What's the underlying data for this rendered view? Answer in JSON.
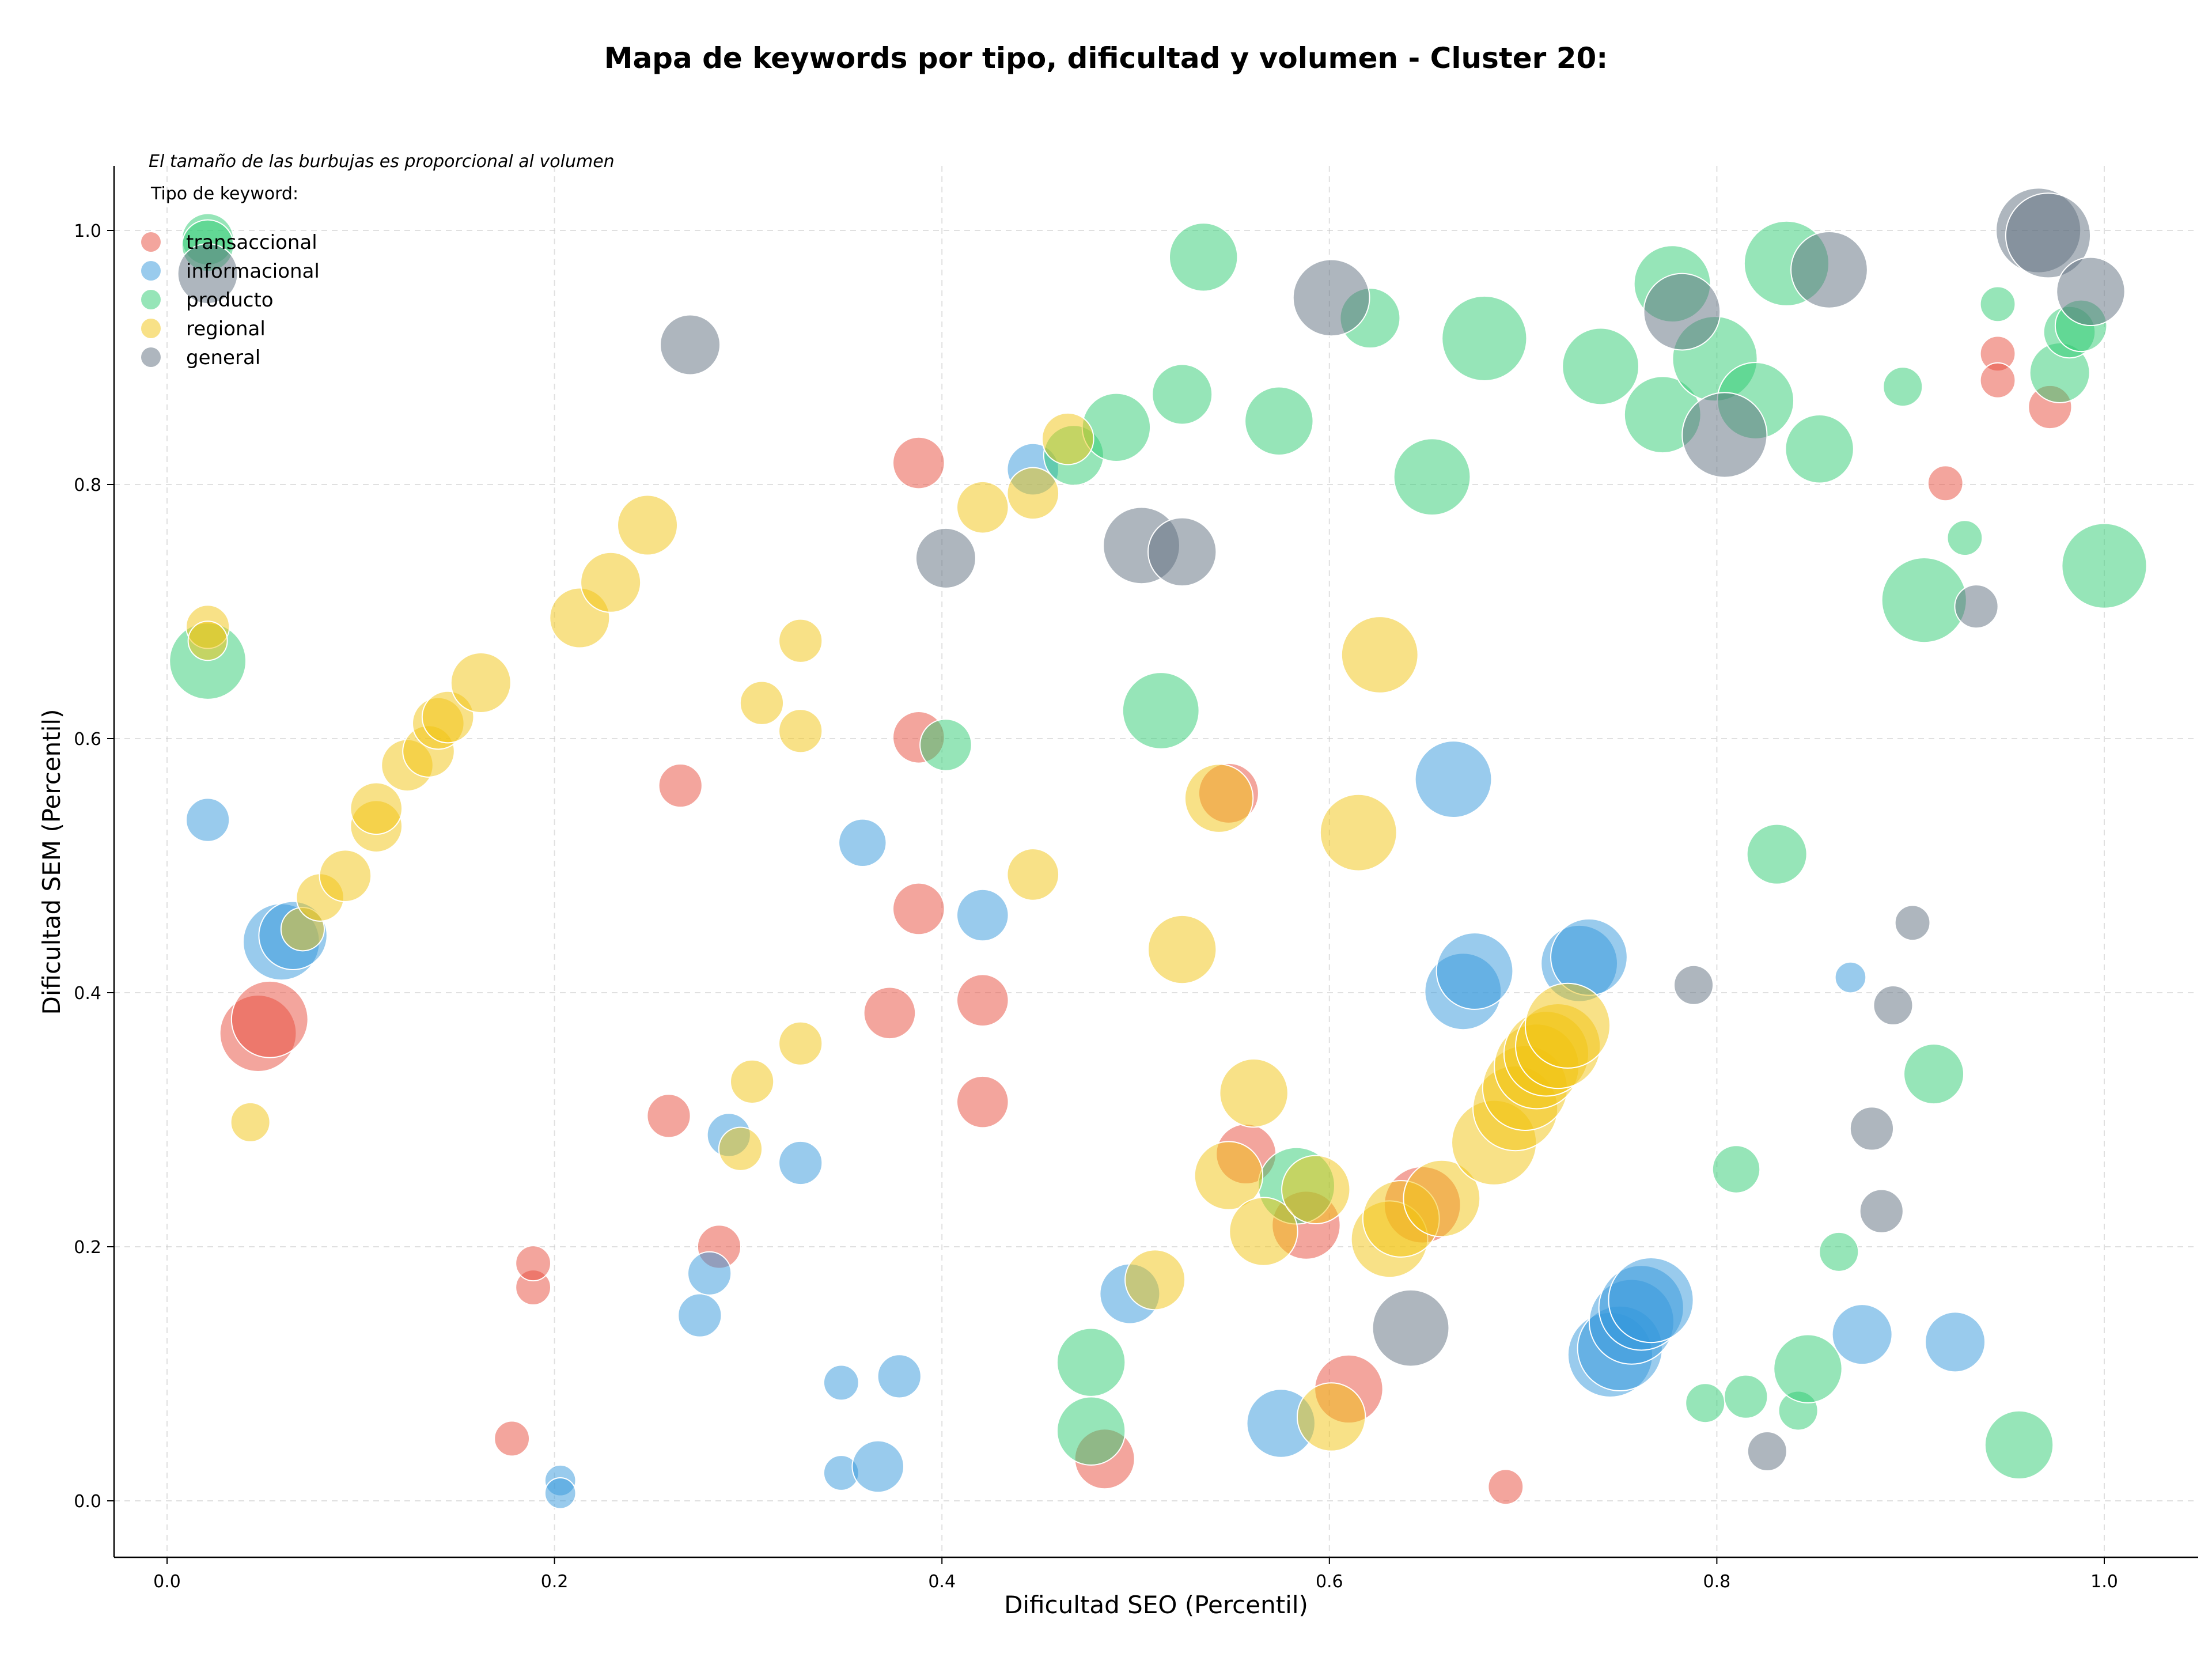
{
  "chart_data": {
    "type": "scatter",
    "title": "Mapa de keywords por tipo, dificultad y volumen - Cluster 20:",
    "xlabel": "Dificultad SEO (Percentil)",
    "ylabel": "Dificultad SEM (Percentil)",
    "note": "El tamaño de las burbujas es proporcional al volumen",
    "legend_title": "Tipo de keyword:",
    "legend_position": "top-left",
    "grid": true,
    "xlim": [
      -0.027,
      1.048
    ],
    "ylim": [
      -0.043,
      1.05
    ],
    "xticks": [
      "0.0",
      "0.2",
      "0.4",
      "0.6",
      "0.8",
      "1.0"
    ],
    "yticks": [
      "0.0",
      "0.2",
      "0.4",
      "0.6",
      "0.8",
      "1.0"
    ],
    "series": [
      {
        "name": "transaccional",
        "color": "#e74c3c",
        "points": [
          {
            "x": 0.047,
            "y": 0.368,
            "size": 7
          },
          {
            "x": 0.053,
            "y": 0.379,
            "size": 7
          },
          {
            "x": 0.178,
            "y": 0.049,
            "size": 2
          },
          {
            "x": 0.189,
            "y": 0.168,
            "size": 2
          },
          {
            "x": 0.189,
            "y": 0.187,
            "size": 2
          },
          {
            "x": 0.259,
            "y": 0.303,
            "size": 3
          },
          {
            "x": 0.265,
            "y": 0.563,
            "size": 3
          },
          {
            "x": 0.285,
            "y": 0.2,
            "size": 3
          },
          {
            "x": 0.373,
            "y": 0.384,
            "size": 4
          },
          {
            "x": 0.388,
            "y": 0.466,
            "size": 4
          },
          {
            "x": 0.388,
            "y": 0.601,
            "size": 4
          },
          {
            "x": 0.388,
            "y": 0.817,
            "size": 4
          },
          {
            "x": 0.421,
            "y": 0.394,
            "size": 4
          },
          {
            "x": 0.421,
            "y": 0.314,
            "size": 4
          },
          {
            "x": 0.484,
            "y": 0.033,
            "size": 5
          },
          {
            "x": 0.548,
            "y": 0.557,
            "size": 5
          },
          {
            "x": 0.557,
            "y": 0.273,
            "size": 5
          },
          {
            "x": 0.588,
            "y": 0.217,
            "size": 6
          },
          {
            "x": 0.61,
            "y": 0.088,
            "size": 6
          },
          {
            "x": 0.648,
            "y": 0.233,
            "size": 7
          },
          {
            "x": 0.691,
            "y": 0.011,
            "size": 2
          },
          {
            "x": 0.918,
            "y": 0.801,
            "size": 2
          },
          {
            "x": 0.945,
            "y": 0.903,
            "size": 2
          },
          {
            "x": 0.945,
            "y": 0.882,
            "size": 2
          },
          {
            "x": 0.972,
            "y": 0.861,
            "size": 3
          }
        ]
      },
      {
        "name": "informacional",
        "color": "#3498db",
        "points": [
          {
            "x": 0.021,
            "y": 0.536,
            "size": 3
          },
          {
            "x": 0.059,
            "y": 0.44,
            "size": 7
          },
          {
            "x": 0.065,
            "y": 0.445,
            "size": 6
          },
          {
            "x": 0.203,
            "y": 0.016,
            "size": 1.5
          },
          {
            "x": 0.203,
            "y": 0.006,
            "size": 1.5
          },
          {
            "x": 0.275,
            "y": 0.146,
            "size": 3
          },
          {
            "x": 0.28,
            "y": 0.179,
            "size": 3
          },
          {
            "x": 0.29,
            "y": 0.288,
            "size": 3
          },
          {
            "x": 0.327,
            "y": 0.266,
            "size": 3
          },
          {
            "x": 0.348,
            "y": 0.093,
            "size": 2
          },
          {
            "x": 0.348,
            "y": 0.022,
            "size": 2
          },
          {
            "x": 0.359,
            "y": 0.518,
            "size": 3.5
          },
          {
            "x": 0.367,
            "y": 0.027,
            "size": 4
          },
          {
            "x": 0.378,
            "y": 0.098,
            "size": 3
          },
          {
            "x": 0.421,
            "y": 0.461,
            "size": 4
          },
          {
            "x": 0.447,
            "y": 0.812,
            "size": 4
          },
          {
            "x": 0.497,
            "y": 0.163,
            "size": 5
          },
          {
            "x": 0.575,
            "y": 0.061,
            "size": 6
          },
          {
            "x": 0.664,
            "y": 0.568,
            "size": 7
          },
          {
            "x": 0.669,
            "y": 0.401,
            "size": 7
          },
          {
            "x": 0.675,
            "y": 0.417,
            "size": 7
          },
          {
            "x": 0.729,
            "y": 0.423,
            "size": 7
          },
          {
            "x": 0.734,
            "y": 0.428,
            "size": 7
          },
          {
            "x": 0.745,
            "y": 0.115,
            "size": 8
          },
          {
            "x": 0.75,
            "y": 0.12,
            "size": 8
          },
          {
            "x": 0.756,
            "y": 0.141,
            "size": 8
          },
          {
            "x": 0.761,
            "y": 0.152,
            "size": 8
          },
          {
            "x": 0.766,
            "y": 0.158,
            "size": 8
          },
          {
            "x": 0.869,
            "y": 0.412,
            "size": 1.5
          },
          {
            "x": 0.875,
            "y": 0.131,
            "size": 5
          },
          {
            "x": 0.923,
            "y": 0.125,
            "size": 5
          }
        ]
      },
      {
        "name": "producto",
        "color": "#2ecc71",
        "points": [
          {
            "x": 0.021,
            "y": 0.661,
            "size": 7
          },
          {
            "x": 0.021,
            "y": 0.993,
            "size": 4
          },
          {
            "x": 0.021,
            "y": 0.988,
            "size": 4
          },
          {
            "x": 0.402,
            "y": 0.595,
            "size": 4
          },
          {
            "x": 0.468,
            "y": 0.823,
            "size": 5
          },
          {
            "x": 0.477,
            "y": 0.109,
            "size": 6
          },
          {
            "x": 0.477,
            "y": 0.055,
            "size": 6
          },
          {
            "x": 0.49,
            "y": 0.845,
            "size": 6
          },
          {
            "x": 0.524,
            "y": 0.871,
            "size": 5
          },
          {
            "x": 0.513,
            "y": 0.622,
            "size": 7
          },
          {
            "x": 0.535,
            "y": 0.979,
            "size": 6
          },
          {
            "x": 0.574,
            "y": 0.85,
            "size": 6
          },
          {
            "x": 0.583,
            "y": 0.248,
            "size": 7
          },
          {
            "x": 0.621,
            "y": 0.931,
            "size": 5
          },
          {
            "x": 0.653,
            "y": 0.806,
            "size": 7
          },
          {
            "x": 0.68,
            "y": 0.915,
            "size": 8
          },
          {
            "x": 0.74,
            "y": 0.893,
            "size": 7
          },
          {
            "x": 0.772,
            "y": 0.855,
            "size": 7
          },
          {
            "x": 0.777,
            "y": 0.958,
            "size": 7
          },
          {
            "x": 0.794,
            "y": 0.077,
            "size": 2.5
          },
          {
            "x": 0.799,
            "y": 0.899,
            "size": 8
          },
          {
            "x": 0.81,
            "y": 0.261,
            "size": 3.5
          },
          {
            "x": 0.815,
            "y": 0.082,
            "size": 3
          },
          {
            "x": 0.82,
            "y": 0.866,
            "size": 7
          },
          {
            "x": 0.831,
            "y": 0.509,
            "size": 5
          },
          {
            "x": 0.836,
            "y": 0.974,
            "size": 8
          },
          {
            "x": 0.842,
            "y": 0.071,
            "size": 2.5
          },
          {
            "x": 0.847,
            "y": 0.104,
            "size": 6
          },
          {
            "x": 0.853,
            "y": 0.828,
            "size": 6
          },
          {
            "x": 0.863,
            "y": 0.196,
            "size": 2.5
          },
          {
            "x": 0.896,
            "y": 0.877,
            "size": 2.5
          },
          {
            "x": 0.907,
            "y": 0.709,
            "size": 8
          },
          {
            "x": 0.912,
            "y": 0.336,
            "size": 5
          },
          {
            "x": 0.928,
            "y": 0.758,
            "size": 2
          },
          {
            "x": 0.945,
            "y": 0.942,
            "size": 2
          },
          {
            "x": 0.956,
            "y": 0.044,
            "size": 6
          },
          {
            "x": 0.977,
            "y": 0.888,
            "size": 5
          },
          {
            "x": 0.982,
            "y": 0.92,
            "size": 4
          },
          {
            "x": 0.988,
            "y": 0.925,
            "size": 4
          },
          {
            "x": 1.0,
            "y": 0.736,
            "size": 8
          }
        ]
      },
      {
        "name": "regional",
        "color": "#f1c40f",
        "points": [
          {
            "x": 0.021,
            "y": 0.688,
            "size": 3
          },
          {
            "x": 0.021,
            "y": 0.677,
            "size": 2.5
          },
          {
            "x": 0.043,
            "y": 0.298,
            "size": 2.5
          },
          {
            "x": 0.07,
            "y": 0.45,
            "size": 3
          },
          {
            "x": 0.079,
            "y": 0.475,
            "size": 3.5
          },
          {
            "x": 0.092,
            "y": 0.492,
            "size": 4
          },
          {
            "x": 0.108,
            "y": 0.531,
            "size": 4
          },
          {
            "x": 0.108,
            "y": 0.545,
            "size": 4
          },
          {
            "x": 0.124,
            "y": 0.579,
            "size": 4
          },
          {
            "x": 0.135,
            "y": 0.59,
            "size": 4
          },
          {
            "x": 0.14,
            "y": 0.612,
            "size": 4
          },
          {
            "x": 0.145,
            "y": 0.617,
            "size": 4
          },
          {
            "x": 0.162,
            "y": 0.644,
            "size": 5
          },
          {
            "x": 0.213,
            "y": 0.695,
            "size": 5
          },
          {
            "x": 0.229,
            "y": 0.723,
            "size": 5
          },
          {
            "x": 0.248,
            "y": 0.768,
            "size": 5
          },
          {
            "x": 0.296,
            "y": 0.277,
            "size": 3
          },
          {
            "x": 0.302,
            "y": 0.33,
            "size": 3
          },
          {
            "x": 0.307,
            "y": 0.628,
            "size": 3
          },
          {
            "x": 0.327,
            "y": 0.677,
            "size": 3
          },
          {
            "x": 0.327,
            "y": 0.606,
            "size": 3
          },
          {
            "x": 0.327,
            "y": 0.36,
            "size": 3
          },
          {
            "x": 0.421,
            "y": 0.782,
            "size": 4
          },
          {
            "x": 0.447,
            "y": 0.493,
            "size": 4
          },
          {
            "x": 0.447,
            "y": 0.793,
            "size": 4
          },
          {
            "x": 0.465,
            "y": 0.836,
            "size": 4
          },
          {
            "x": 0.51,
            "y": 0.174,
            "size": 5
          },
          {
            "x": 0.524,
            "y": 0.434,
            "size": 6
          },
          {
            "x": 0.543,
            "y": 0.553,
            "size": 6
          },
          {
            "x": 0.548,
            "y": 0.256,
            "size": 6
          },
          {
            "x": 0.561,
            "y": 0.321,
            "size": 6
          },
          {
            "x": 0.566,
            "y": 0.212,
            "size": 6
          },
          {
            "x": 0.593,
            "y": 0.245,
            "size": 6
          },
          {
            "x": 0.601,
            "y": 0.066,
            "size": 6
          },
          {
            "x": 0.615,
            "y": 0.526,
            "size": 7
          },
          {
            "x": 0.626,
            "y": 0.666,
            "size": 7
          },
          {
            "x": 0.631,
            "y": 0.206,
            "size": 7
          },
          {
            "x": 0.637,
            "y": 0.222,
            "size": 7
          },
          {
            "x": 0.658,
            "y": 0.238,
            "size": 7
          },
          {
            "x": 0.685,
            "y": 0.282,
            "size": 8
          },
          {
            "x": 0.696,
            "y": 0.309,
            "size": 8
          },
          {
            "x": 0.701,
            "y": 0.325,
            "size": 8
          },
          {
            "x": 0.707,
            "y": 0.342,
            "size": 8
          },
          {
            "x": 0.712,
            "y": 0.352,
            "size": 8
          },
          {
            "x": 0.718,
            "y": 0.358,
            "size": 8
          },
          {
            "x": 0.723,
            "y": 0.374,
            "size": 8
          }
        ]
      },
      {
        "name": "general",
        "color": "#5d6d7e",
        "points": [
          {
            "x": 0.021,
            "y": 0.966,
            "size": 5
          },
          {
            "x": 0.27,
            "y": 0.91,
            "size": 5
          },
          {
            "x": 0.402,
            "y": 0.742,
            "size": 5
          },
          {
            "x": 0.503,
            "y": 0.752,
            "size": 7
          },
          {
            "x": 0.524,
            "y": 0.747,
            "size": 6
          },
          {
            "x": 0.601,
            "y": 0.947,
            "size": 7
          },
          {
            "x": 0.642,
            "y": 0.136,
            "size": 7
          },
          {
            "x": 0.782,
            "y": 0.936,
            "size": 7
          },
          {
            "x": 0.788,
            "y": 0.406,
            "size": 2.5
          },
          {
            "x": 0.804,
            "y": 0.839,
            "size": 8
          },
          {
            "x": 0.858,
            "y": 0.969,
            "size": 7
          },
          {
            "x": 0.88,
            "y": 0.293,
            "size": 3
          },
          {
            "x": 0.885,
            "y": 0.228,
            "size": 3
          },
          {
            "x": 0.891,
            "y": 0.39,
            "size": 2.5
          },
          {
            "x": 0.901,
            "y": 0.455,
            "size": 2
          },
          {
            "x": 0.826,
            "y": 0.039,
            "size": 2.5
          },
          {
            "x": 0.934,
            "y": 0.704,
            "size": 3
          },
          {
            "x": 0.966,
            "y": 1.0,
            "size": 8
          },
          {
            "x": 0.971,
            "y": 0.996,
            "size": 8
          },
          {
            "x": 0.993,
            "y": 0.952,
            "size": 6
          }
        ]
      }
    ]
  }
}
